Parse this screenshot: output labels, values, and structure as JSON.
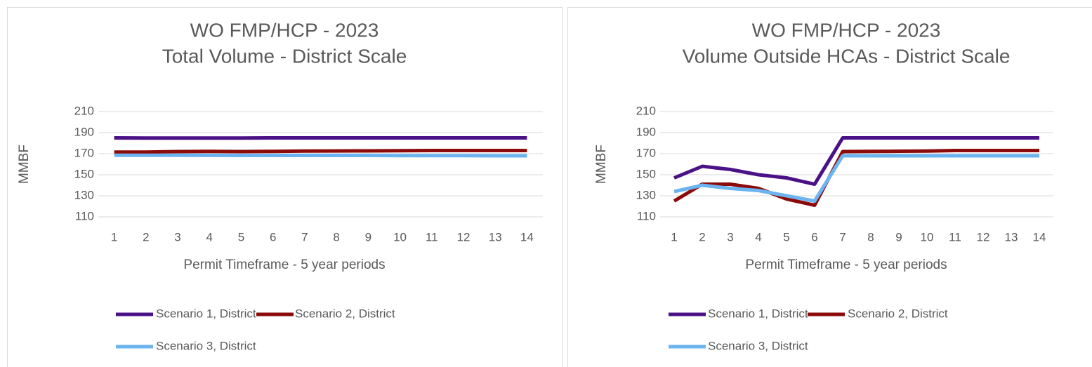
{
  "chart_data": [
    {
      "type": "line",
      "title": "WO FMP/HCP - 2023",
      "subtitle": "Total Volume - District Scale",
      "xlabel": "Permit Timeframe - 5 year periods",
      "ylabel": "MMBF",
      "categories": [
        "1",
        "2",
        "3",
        "4",
        "5",
        "6",
        "7",
        "8",
        "9",
        "10",
        "11",
        "12",
        "13",
        "14"
      ],
      "ylim": [
        110,
        210
      ],
      "yticks": [
        110,
        130,
        150,
        170,
        190,
        210
      ],
      "grid": true,
      "series": [
        {
          "name": "Scenario 1, District",
          "color": "#4b1187",
          "values": [
            185,
            184.8,
            184.8,
            184.8,
            184.8,
            185,
            185,
            185,
            185,
            185,
            185,
            185,
            185,
            185
          ]
        },
        {
          "name": "Scenario 2, District",
          "color": "#8b0a0a",
          "values": [
            171.5,
            171.5,
            172,
            172.2,
            172,
            172.2,
            172.5,
            172.6,
            172.7,
            172.8,
            173,
            173,
            173,
            173
          ]
        },
        {
          "name": "Scenario 3, District",
          "color": "#6cb4f0",
          "values": [
            168.5,
            168.5,
            168.5,
            168.4,
            168.3,
            168.3,
            168.3,
            168.3,
            168.3,
            168.2,
            168.2,
            168.2,
            168,
            168
          ]
        }
      ]
    },
    {
      "type": "line",
      "title": "WO FMP/HCP - 2023",
      "subtitle": "Volume Outside HCAs - District Scale",
      "xlabel": "Permit Timeframe - 5 year periods",
      "ylabel": "MMBF",
      "categories": [
        "1",
        "2",
        "3",
        "4",
        "5",
        "6",
        "7",
        "8",
        "9",
        "10",
        "11",
        "12",
        "13",
        "14"
      ],
      "ylim": [
        110,
        210
      ],
      "yticks": [
        110,
        130,
        150,
        170,
        190,
        210
      ],
      "grid": true,
      "series": [
        {
          "name": "Scenario 1, District",
          "color": "#4b1187",
          "values": [
            147,
            158,
            155,
            150,
            147,
            141,
            185,
            185,
            185,
            185,
            185,
            185,
            185,
            185
          ]
        },
        {
          "name": "Scenario 2, District",
          "color": "#8b0a0a",
          "values": [
            125,
            141,
            141,
            137,
            127,
            121,
            172,
            172.2,
            172.3,
            172.5,
            173,
            173,
            173,
            173
          ]
        },
        {
          "name": "Scenario 3, District",
          "color": "#6cb4f0",
          "values": [
            134,
            140,
            137,
            135,
            130,
            125,
            168,
            168,
            168,
            168,
            168,
            168,
            168,
            168
          ]
        }
      ]
    }
  ]
}
